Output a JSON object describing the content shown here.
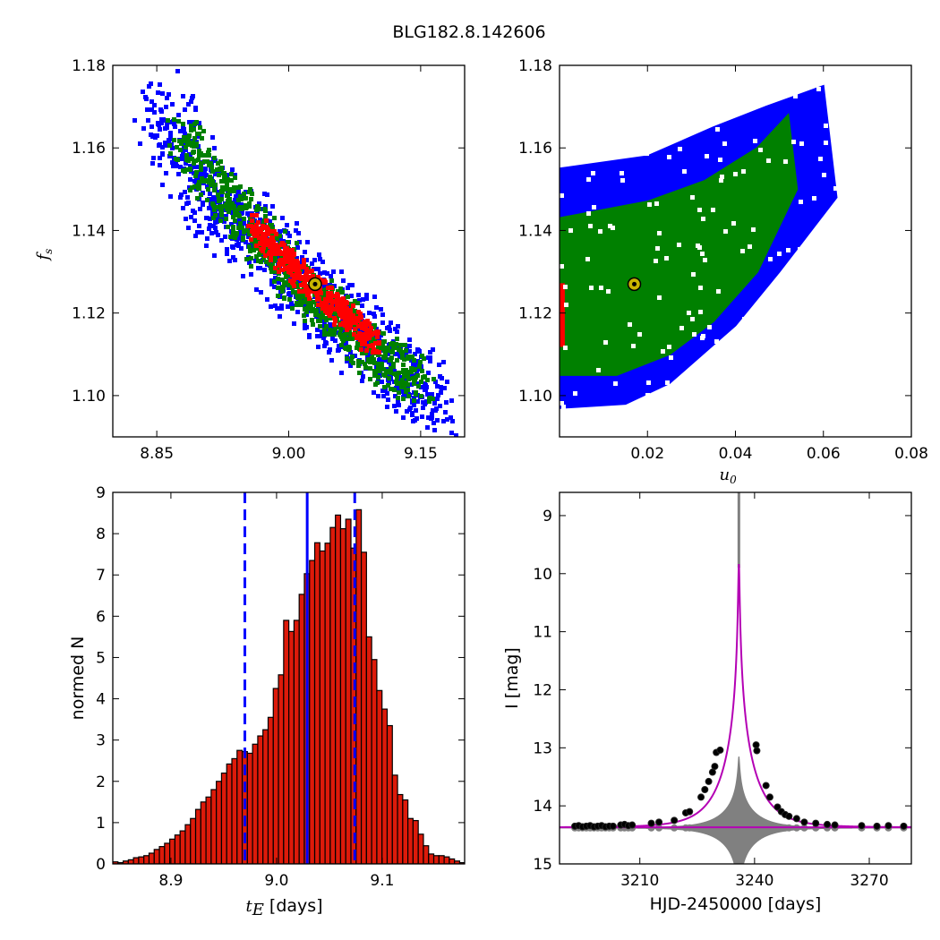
{
  "figure_title": "BLG182.8.142606",
  "colors": {
    "blue": "#0000ff",
    "green": "#008000",
    "red": "#ff0000",
    "hist_fill": "#dd1a0a",
    "model": "#b400b4",
    "residual": "#808080",
    "best_fit_marker": "#c8b400"
  },
  "chart_data": [
    {
      "type": "heatmap",
      "panel": "top-left",
      "xlabel": "",
      "ylabel_italic": "f",
      "ylabel_sub": "s",
      "xlim": [
        8.8,
        9.2
      ],
      "ylim": [
        1.09,
        1.18
      ],
      "xticks": [
        8.85,
        9.0,
        9.15
      ],
      "xtick_labels": [
        "8.85",
        "9.00",
        "9.15"
      ],
      "yticks": [
        1.1,
        1.12,
        1.14,
        1.16,
        1.18
      ],
      "ytick_labels": [
        "1.10",
        "1.12",
        "1.14",
        "1.16",
        "1.18"
      ],
      "levels": [
        {
          "color": "blue",
          "points": [
            [
              8.85,
              1.17
            ],
            [
              8.88,
              1.16
            ],
            [
              8.92,
              1.145
            ],
            [
              8.96,
              1.14
            ],
            [
              9.0,
              1.13
            ],
            [
              9.05,
              1.12
            ],
            [
              9.1,
              1.11
            ],
            [
              9.13,
              1.105
            ],
            [
              9.17,
              1.098
            ]
          ],
          "half_width": 0.0085
        },
        {
          "color": "green",
          "points": [
            [
              8.88,
              1.163
            ],
            [
              8.92,
              1.15
            ],
            [
              8.96,
              1.14
            ],
            [
              9.0,
              1.13
            ],
            [
              9.05,
              1.12
            ],
            [
              9.1,
              1.11
            ],
            [
              9.15,
              1.103
            ]
          ],
          "half_width": 0.0055
        },
        {
          "color": "red",
          "points": [
            [
              8.96,
              1.141
            ],
            [
              9.0,
              1.132
            ],
            [
              9.04,
              1.124
            ],
            [
              9.07,
              1.118
            ],
            [
              9.1,
              1.112
            ]
          ],
          "half_width": 0.0028
        }
      ],
      "best_fit": {
        "x": 9.03,
        "y": 1.127
      }
    },
    {
      "type": "heatmap",
      "panel": "top-right",
      "xlabel_italic": "u",
      "xlabel_sub": "0",
      "ylabel": "",
      "xlim": [
        0.0,
        0.08
      ],
      "ylim": [
        1.09,
        1.18
      ],
      "xticks": [
        0.02,
        0.04,
        0.06,
        0.08
      ],
      "xtick_labels": [
        "0.02",
        "0.04",
        "0.06",
        "0.08"
      ],
      "yticks": [
        1.1,
        1.12,
        1.14,
        1.16,
        1.18
      ],
      "ytick_labels": [
        "1.10",
        "1.12",
        "1.14",
        "1.16",
        "1.18"
      ],
      "levels": [
        {
          "color": "blue",
          "points": [
            [
              0.0,
              1.099
            ],
            [
              0.0,
              1.155
            ],
            [
              0.02,
              1.158
            ],
            [
              0.035,
              1.165
            ],
            [
              0.047,
              1.17
            ],
            [
              0.06,
              1.175
            ],
            [
              0.063,
              1.148
            ],
            [
              0.05,
              1.13
            ],
            [
              0.04,
              1.117
            ],
            [
              0.025,
              1.103
            ],
            [
              0.015,
              1.098
            ],
            [
              0.0,
              1.097
            ]
          ]
        },
        {
          "color": "green",
          "points": [
            [
              0.0,
              1.105
            ],
            [
              0.0,
              1.143
            ],
            [
              0.02,
              1.147
            ],
            [
              0.033,
              1.152
            ],
            [
              0.045,
              1.16
            ],
            [
              0.052,
              1.168
            ],
            [
              0.054,
              1.15
            ],
            [
              0.045,
              1.13
            ],
            [
              0.035,
              1.118
            ],
            [
              0.025,
              1.11
            ],
            [
              0.013,
              1.105
            ]
          ]
        },
        {
          "color": "red",
          "points": [
            [
              0.0,
              1.112
            ],
            [
              0.0,
              1.127
            ],
            [
              0.001,
              1.127
            ],
            [
              0.001,
              1.112
            ]
          ]
        }
      ],
      "best_fit": {
        "x": 0.017,
        "y": 1.127
      }
    },
    {
      "type": "bar",
      "panel": "bottom-left",
      "xlabel_italic": "t",
      "xlabel_sub": "E",
      "xlabel_rest": " [days]",
      "ylabel": "normed N",
      "xlim": [
        8.845,
        9.178
      ],
      "ylim": [
        0,
        9
      ],
      "xticks": [
        8.9,
        9.0,
        9.1
      ],
      "xtick_labels": [
        "8.9",
        "9.0",
        "9.1"
      ],
      "yticks": [
        0,
        1,
        2,
        3,
        4,
        5,
        6,
        7,
        8,
        9
      ],
      "ytick_labels": [
        "0",
        "1",
        "2",
        "3",
        "4",
        "5",
        "6",
        "7",
        "8",
        "9"
      ],
      "bin_start": 8.845,
      "bin_width": 0.0049,
      "values": [
        0.05,
        0.03,
        0.07,
        0.1,
        0.15,
        0.17,
        0.2,
        0.26,
        0.35,
        0.42,
        0.5,
        0.6,
        0.7,
        0.8,
        0.95,
        1.1,
        1.32,
        1.5,
        1.62,
        1.8,
        2.0,
        2.2,
        2.42,
        2.55,
        2.75,
        2.72,
        2.68,
        2.9,
        3.1,
        3.25,
        3.55,
        4.25,
        4.58,
        5.9,
        5.63,
        5.9,
        6.53,
        7.03,
        7.35,
        7.78,
        7.58,
        7.77,
        8.15,
        8.45,
        8.12,
        8.35,
        7.65,
        8.58,
        7.55,
        5.5,
        4.95,
        4.2,
        3.75,
        3.35,
        2.15,
        1.68,
        1.55,
        1.1,
        1.05,
        0.72,
        0.44,
        0.24,
        0.2,
        0.2,
        0.17,
        0.12,
        0.07,
        0.03
      ],
      "median": 9.029,
      "lower_bound": 8.97,
      "upper_bound": 9.074
    },
    {
      "type": "line",
      "panel": "bottom-right",
      "xlabel": "HJD-2450000 [days]",
      "ylabel": "I [mag]",
      "xlim": [
        3189,
        3281
      ],
      "ylim": [
        15.0,
        8.6
      ],
      "xticks": [
        3210,
        3240,
        3270
      ],
      "xtick_labels": [
        "3210",
        "3240",
        "3270"
      ],
      "yticks": [
        9,
        10,
        11,
        12,
        13,
        14,
        15
      ],
      "ytick_labels": [
        "9",
        "10",
        "11",
        "12",
        "13",
        "14",
        "15"
      ],
      "model": {
        "t0": 3235.9,
        "tE": 9.03,
        "u0": 0.017,
        "fs": 1.127,
        "baseline": 14.37,
        "peak_mag": 9.85
      },
      "observations": [
        {
          "x": 3193,
          "y": 14.35
        },
        {
          "x": 3194,
          "y": 14.34
        },
        {
          "x": 3195,
          "y": 14.36
        },
        {
          "x": 3196,
          "y": 14.35
        },
        {
          "x": 3197,
          "y": 14.34
        },
        {
          "x": 3198,
          "y": 14.36
        },
        {
          "x": 3199,
          "y": 14.35
        },
        {
          "x": 3200,
          "y": 14.34
        },
        {
          "x": 3201,
          "y": 14.36
        },
        {
          "x": 3202,
          "y": 14.35
        },
        {
          "x": 3203,
          "y": 14.35
        },
        {
          "x": 3205,
          "y": 14.33
        },
        {
          "x": 3206,
          "y": 14.32
        },
        {
          "x": 3207,
          "y": 14.34
        },
        {
          "x": 3208,
          "y": 14.33
        },
        {
          "x": 3213,
          "y": 14.3
        },
        {
          "x": 3215,
          "y": 14.28
        },
        {
          "x": 3219,
          "y": 14.25
        },
        {
          "x": 3222,
          "y": 14.12
        },
        {
          "x": 3223,
          "y": 14.1
        },
        {
          "x": 3226,
          "y": 13.85
        },
        {
          "x": 3227,
          "y": 13.72
        },
        {
          "x": 3228,
          "y": 13.58
        },
        {
          "x": 3229,
          "y": 13.42
        },
        {
          "x": 3229.6,
          "y": 13.32
        },
        {
          "x": 3230,
          "y": 13.08
        },
        {
          "x": 3231,
          "y": 13.04
        },
        {
          "x": 3240.4,
          "y": 12.95
        },
        {
          "x": 3240.6,
          "y": 13.05
        },
        {
          "x": 3243,
          "y": 13.65
        },
        {
          "x": 3244,
          "y": 13.85
        },
        {
          "x": 3246,
          "y": 14.02
        },
        {
          "x": 3247,
          "y": 14.1
        },
        {
          "x": 3248,
          "y": 14.15
        },
        {
          "x": 3249,
          "y": 14.18
        },
        {
          "x": 3251,
          "y": 14.22
        },
        {
          "x": 3253,
          "y": 14.28
        },
        {
          "x": 3256,
          "y": 14.3
        },
        {
          "x": 3259,
          "y": 14.32
        },
        {
          "x": 3261,
          "y": 14.33
        },
        {
          "x": 3268,
          "y": 14.34
        },
        {
          "x": 3272,
          "y": 14.35
        },
        {
          "x": 3275,
          "y": 14.34
        },
        {
          "x": 3279,
          "y": 14.35
        }
      ],
      "residual_baseline": 14.38
    }
  ]
}
